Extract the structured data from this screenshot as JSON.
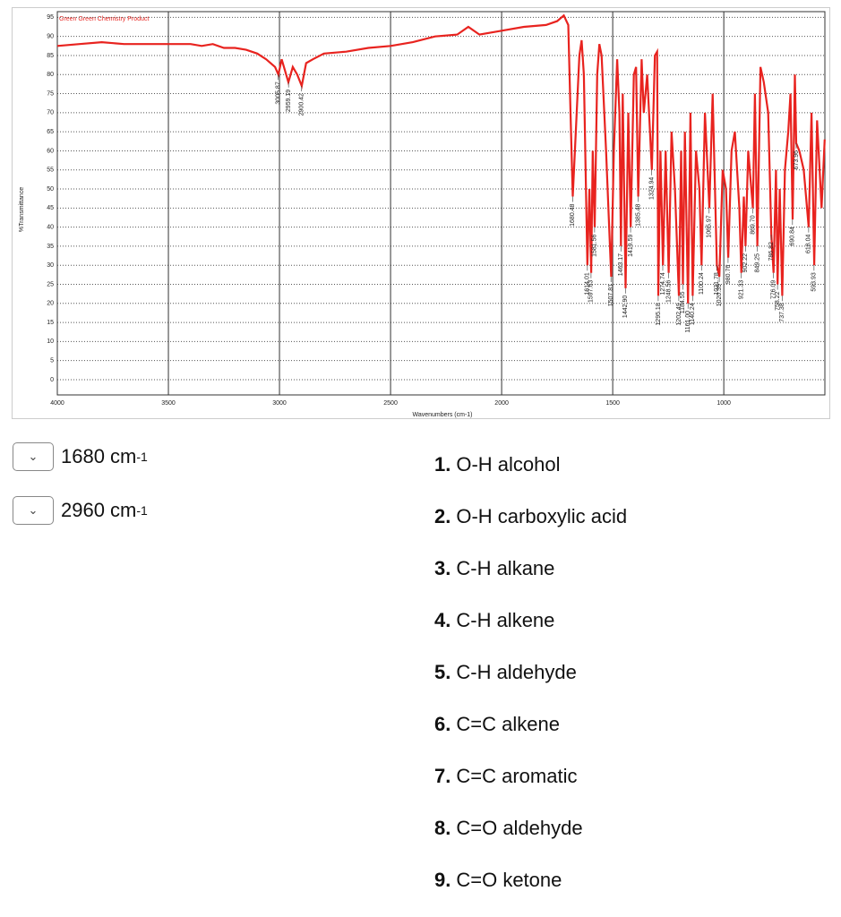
{
  "chart_data": {
    "type": "line",
    "title": "Green Green Chemistry Product",
    "x_label": "Wavenumbers (cm-1)",
    "y_label": "%Transmittance",
    "color": "#e8231f",
    "grid": true,
    "xlim": [
      4000,
      545
    ],
    "ylim": [
      -4,
      96.5
    ],
    "xticks": [
      4000,
      3500,
      3000,
      2500,
      2000,
      1500,
      1000
    ],
    "yticks": [
      0,
      5,
      10,
      15,
      20,
      25,
      30,
      35,
      40,
      45,
      50,
      55,
      60,
      65,
      70,
      75,
      80,
      85,
      90,
      95
    ],
    "x": [
      4000,
      3900,
      3800,
      3700,
      3600,
      3500,
      3400,
      3350,
      3300,
      3250,
      3200,
      3150,
      3100,
      3060,
      3020,
      3005,
      2990,
      2960,
      2940,
      2920,
      2900,
      2880,
      2850,
      2800,
      2700,
      2600,
      2500,
      2400,
      2300,
      2200,
      2150,
      2100,
      2000,
      1900,
      1800,
      1750,
      1720,
      1700,
      1690,
      1680,
      1670,
      1650,
      1640,
      1630,
      1614,
      1605,
      1597,
      1590,
      1581,
      1570,
      1560,
      1550,
      1530,
      1507,
      1495,
      1480,
      1470,
      1463,
      1455,
      1442,
      1430,
      1419,
      1405,
      1395,
      1385,
      1370,
      1360,
      1345,
      1324,
      1310,
      1300,
      1295,
      1285,
      1274,
      1262,
      1248,
      1235,
      1220,
      1202,
      1192,
      1184,
      1175,
      1161,
      1150,
      1140,
      1125,
      1110,
      1100,
      1085,
      1065,
      1050,
      1031,
      1020,
      1005,
      990,
      980,
      965,
      950,
      930,
      921,
      910,
      902,
      890,
      869,
      860,
      849,
      835,
      820,
      800,
      786,
      776,
      765,
      758,
      748,
      737,
      725,
      710,
      700,
      690,
      680,
      674,
      660,
      640,
      618,
      605,
      593,
      580,
      560,
      546
    ],
    "values": [
      87.5,
      88,
      88.5,
      88,
      88,
      88,
      88,
      87.5,
      88,
      87,
      87,
      86.5,
      85.5,
      84,
      82,
      80,
      84,
      78,
      82,
      80,
      77,
      83,
      84,
      85.5,
      86,
      87,
      87.5,
      88.5,
      90,
      90.5,
      92.5,
      90.5,
      91.5,
      92.5,
      93,
      94,
      95.5,
      93,
      70,
      48,
      60,
      85,
      89,
      80,
      30,
      50,
      28,
      60,
      40,
      80,
      88,
      85,
      60,
      27,
      60,
      84,
      70,
      35,
      75,
      24,
      70,
      40,
      80,
      82,
      48,
      84,
      70,
      80,
      55,
      85,
      86,
      22,
      60,
      30,
      60,
      28,
      65,
      50,
      22,
      60,
      25,
      65,
      20,
      70,
      22,
      60,
      50,
      30,
      70,
      45,
      75,
      30,
      27,
      55,
      50,
      32,
      60,
      65,
      45,
      28,
      48,
      35,
      60,
      45,
      75,
      35,
      82,
      78,
      70,
      38,
      28,
      55,
      25,
      50,
      22,
      55,
      65,
      75,
      42,
      80,
      62,
      60,
      55,
      40,
      70,
      30,
      68,
      45,
      63
    ],
    "peak_labels": [
      "3005.87",
      "2959.19",
      "2900.42",
      "1680.48",
      "1614.01",
      "1597.63",
      "1581.56",
      "1507.81",
      "1463.17",
      "1442.90",
      "1419.59",
      "1385.48",
      "1324.94",
      "1295.18",
      "1274.74",
      "1248.56",
      "1202.49",
      "1184.55",
      "1161.00",
      "1140.24",
      "1100.24",
      "1065.97",
      "1031.78",
      "1020.39",
      "980.76",
      "921.33",
      "902.22",
      "869.70",
      "849.25",
      "786.82",
      "776.09",
      "758.22",
      "737.38",
      "690.84",
      "673.96",
      "618.04",
      "593.93"
    ],
    "peak_x": [
      3005.87,
      2959.19,
      2900.42,
      1680.48,
      1614.01,
      1597.63,
      1581.56,
      1507.81,
      1463.17,
      1442.9,
      1419.59,
      1385.48,
      1324.94,
      1295.18,
      1274.74,
      1248.56,
      1202.49,
      1184.55,
      1161,
      1140.24,
      1100.24,
      1065.97,
      1031.78,
      1020.39,
      980.76,
      921.33,
      902.22,
      869.7,
      849.25,
      786.82,
      776.09,
      758.22,
      737.38,
      690.84,
      673.96,
      618.04,
      593.93
    ],
    "peak_y": [
      80,
      78,
      77,
      48,
      30,
      28,
      40,
      27,
      35,
      24,
      40,
      48,
      55,
      22,
      30,
      28,
      22,
      25,
      20,
      22,
      30,
      45,
      30,
      27,
      32,
      28,
      35,
      45,
      35,
      38,
      28,
      25,
      22,
      42,
      62,
      40,
      30
    ]
  },
  "dropdowns": [
    {
      "text": "1680 cm",
      "sup": "-1"
    },
    {
      "text": "2960 cm",
      "sup": "-1"
    }
  ],
  "options": [
    {
      "num": "1.",
      "text": "O-H alcohol"
    },
    {
      "num": "2.",
      "text": "O-H carboxylic acid"
    },
    {
      "num": "3.",
      "text": "C-H alkane"
    },
    {
      "num": "4.",
      "text": "C-H alkene"
    },
    {
      "num": "5.",
      "text": "C-H aldehyde"
    },
    {
      "num": "6.",
      "text": "C=C alkene"
    },
    {
      "num": "7.",
      "text": "C=C aromatic"
    },
    {
      "num": "8.",
      "text": "C=O aldehyde"
    },
    {
      "num": "9.",
      "text": "C=O ketone"
    }
  ]
}
